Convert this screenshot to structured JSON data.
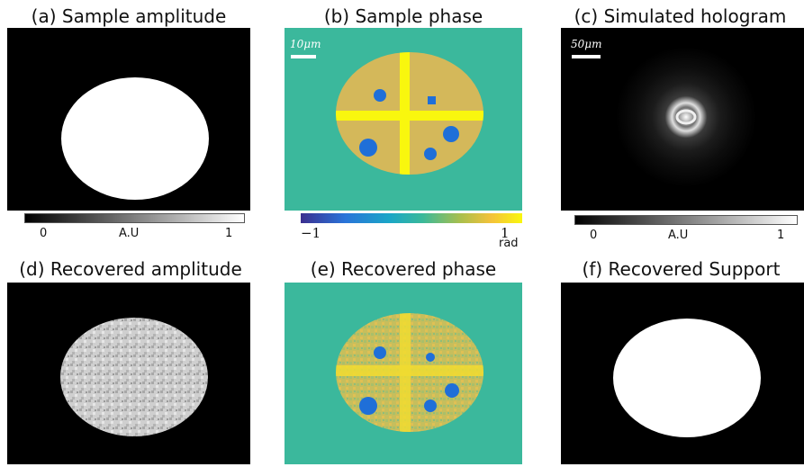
{
  "panels": {
    "a": {
      "title": "(a) Sample amplitude"
    },
    "b": {
      "title": "(b) Sample phase",
      "scale_label": "10μm"
    },
    "c": {
      "title": "(c) Simulated hologram",
      "scale_label": "50μm"
    },
    "d": {
      "title": "(d) Recovered amplitude"
    },
    "e": {
      "title": "(e) Recovered phase"
    },
    "f": {
      "title": "(f) Recovered Support"
    }
  },
  "colorbars": {
    "amplitude": {
      "min": "0",
      "unit": "A.U",
      "max": "1"
    },
    "phase": {
      "min": "−1",
      "max": "1",
      "unit": "rad"
    },
    "hologram": {
      "min": "0",
      "unit": "A.U",
      "max": "1"
    }
  },
  "colors": {
    "teal": "#3bb89c",
    "gold": "#d4b85a",
    "yellow": "#f9f70e",
    "blue": "#1f6fd8"
  }
}
